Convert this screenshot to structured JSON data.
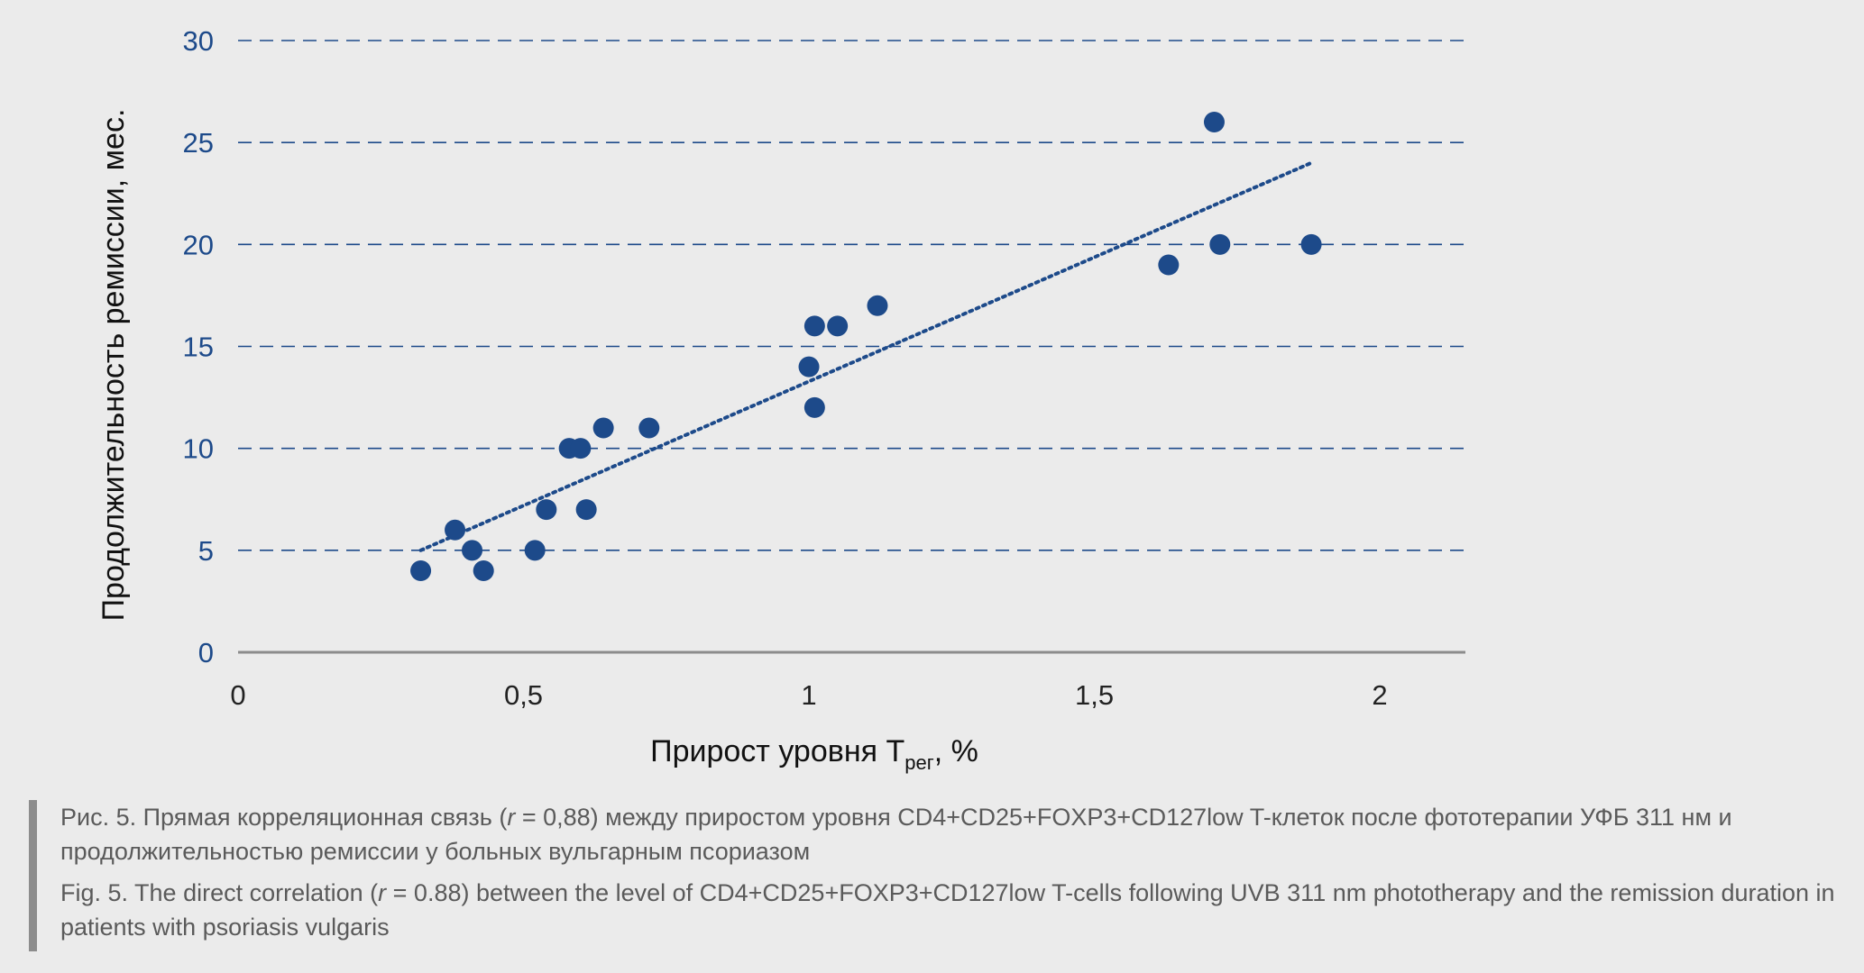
{
  "chart_data": {
    "type": "scatter",
    "xlabel_main": "Прирост уровня T",
    "xlabel_sub": "рег",
    "xlabel_suffix": ", %",
    "ylabel": "Продолжительность ремиссии, мес.",
    "xlim": [
      0,
      2.15
    ],
    "ylim": [
      0,
      30
    ],
    "x_ticks": [
      0,
      0.5,
      1,
      1.5,
      2
    ],
    "x_tick_labels": [
      "0",
      "0,5",
      "1",
      "1,5",
      "2"
    ],
    "y_ticks": [
      0,
      5,
      10,
      15,
      20,
      25,
      30
    ],
    "y_tick_labels": [
      "0",
      "5",
      "10",
      "15",
      "20",
      "25",
      "30"
    ],
    "grid": "horizontal-dashed",
    "points": [
      {
        "x": 0.32,
        "y": 4
      },
      {
        "x": 0.38,
        "y": 6
      },
      {
        "x": 0.41,
        "y": 5
      },
      {
        "x": 0.43,
        "y": 4
      },
      {
        "x": 0.52,
        "y": 5
      },
      {
        "x": 0.54,
        "y": 7
      },
      {
        "x": 0.58,
        "y": 10
      },
      {
        "x": 0.6,
        "y": 10
      },
      {
        "x": 0.61,
        "y": 7
      },
      {
        "x": 0.64,
        "y": 11
      },
      {
        "x": 0.72,
        "y": 11
      },
      {
        "x": 1.0,
        "y": 14
      },
      {
        "x": 1.01,
        "y": 16
      },
      {
        "x": 1.01,
        "y": 12
      },
      {
        "x": 1.05,
        "y": 16
      },
      {
        "x": 1.12,
        "y": 17
      },
      {
        "x": 1.63,
        "y": 19
      },
      {
        "x": 1.71,
        "y": 26
      },
      {
        "x": 1.72,
        "y": 20
      },
      {
        "x": 1.88,
        "y": 20
      }
    ],
    "trendline": {
      "style": "dotted",
      "x": [
        0.32,
        1.88
      ],
      "y": [
        5,
        24
      ]
    },
    "colors": {
      "points": "#1d4a8a",
      "grid": "#1d4a8a",
      "trend": "#1d4a8a",
      "axis": "#8c8c8c"
    }
  },
  "caption": {
    "ru_before": "Рис. 5. Прямая корреляционная связь (",
    "ru_r": "r",
    "ru_after": " = 0,88) между приростом уровня CD4+CD25+FOXP3+CD127low T-клеток после фототерапии УФБ 311 нм и продолжительностью ремиссии у больных вульгарным псориазом",
    "en_before": "Fig. 5. The direct correlation (",
    "en_r": "r",
    "en_after": " = 0.88) between the level of CD4+CD25+FOXP3+CD127low T-cells following UVB 311 nm phototherapy and the remission duration in patients with psoriasis vulgaris"
  }
}
